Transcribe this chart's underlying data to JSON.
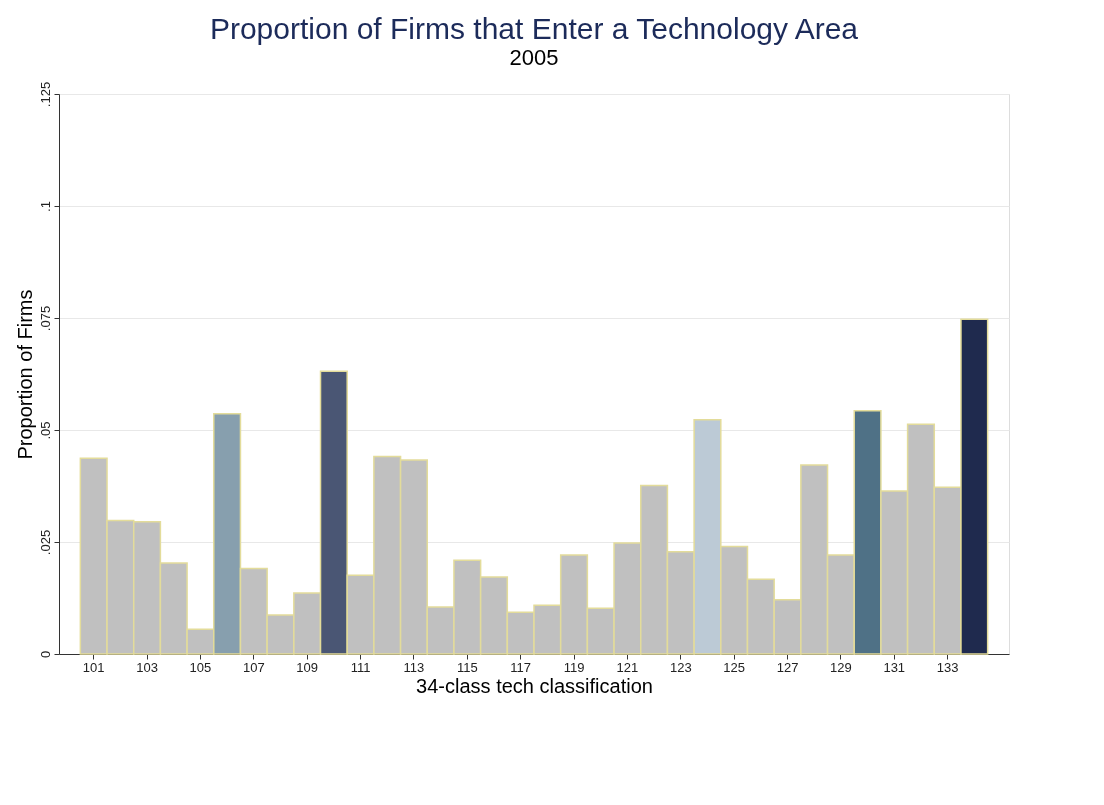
{
  "chart_data": {
    "type": "bar",
    "title": "Proportion of Firms that Enter a Technology Area",
    "subtitle": "2005",
    "xlabel": "34-class tech classification",
    "ylabel": "Proportion of Firms",
    "categories": [
      "101",
      null,
      "103",
      null,
      "105",
      null,
      "107",
      null,
      "109",
      null,
      "111",
      null,
      "113",
      null,
      "115",
      null,
      "117",
      null,
      "119",
      null,
      "121",
      null,
      "123",
      null,
      "125",
      null,
      "127",
      null,
      "129",
      null,
      "131",
      null,
      "133",
      null
    ],
    "values": [
      0.0437,
      0.0298,
      0.0295,
      0.0203,
      0.0055,
      0.0536,
      0.0191,
      0.0087,
      0.0136,
      0.0631,
      0.0176,
      0.0441,
      0.0433,
      0.0105,
      0.0209,
      0.0172,
      0.0093,
      0.0109,
      0.0221,
      0.0102,
      0.0248,
      0.0376,
      0.0228,
      0.0523,
      0.024,
      0.0167,
      0.0121,
      0.0422,
      0.0221,
      0.0543,
      0.0364,
      0.0513,
      0.0372,
      0.0747
    ],
    "colors": [
      "#c0c0c0",
      "#c0c0c0",
      "#c0c0c0",
      "#c0c0c0",
      "#c0c0c0",
      "#879fae",
      "#c0c0c0",
      "#c0c0c0",
      "#c0c0c0",
      "#4a5674",
      "#c0c0c0",
      "#c0c0c0",
      "#c0c0c0",
      "#c0c0c0",
      "#c0c0c0",
      "#c0c0c0",
      "#c0c0c0",
      "#c0c0c0",
      "#c0c0c0",
      "#c0c0c0",
      "#c0c0c0",
      "#c0c0c0",
      "#c0c0c0",
      "#bccad6",
      "#c0c0c0",
      "#c0c0c0",
      "#c0c0c0",
      "#c0c0c0",
      "#c0c0c0",
      "#4f7186",
      "#c0c0c0",
      "#c0c0c0",
      "#c0c0c0",
      "#1f2a4e"
    ],
    "ylim": [
      0,
      0.125
    ],
    "yticks": [
      0,
      {
        "value": 0.025,
        "label": ".025"
      },
      {
        "value": 0.05,
        "label": ".05"
      },
      {
        "value": 0.075,
        "label": ".075"
      },
      {
        "value": 0.1,
        "label": ".1"
      },
      {
        "value": 0.125,
        "label": ".125"
      }
    ],
    "grid": "y"
  }
}
